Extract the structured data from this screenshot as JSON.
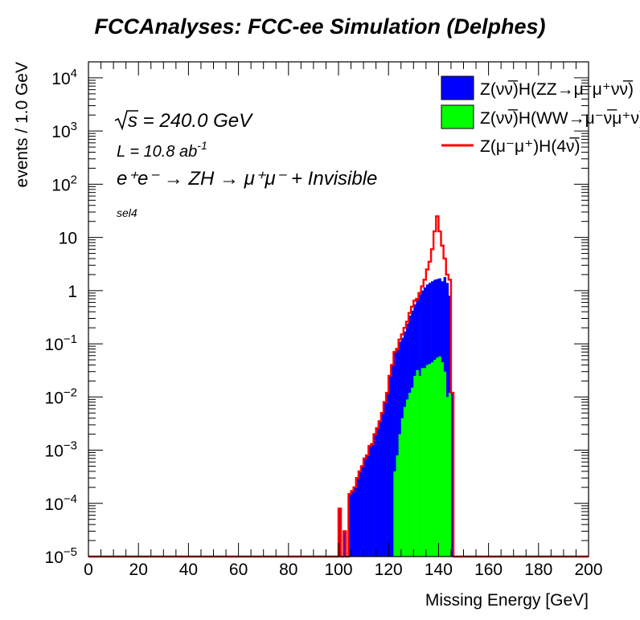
{
  "chart_data": {
    "type": "histogram",
    "title": "FCCAnalyses: FCC-ee Simulation (Delphes)",
    "xlabel": "Missing Energy [GeV]",
    "ylabel": "events / 1.0 GeV",
    "xlim": [
      0,
      200
    ],
    "ylim": [
      1e-05,
      20000
    ],
    "log_y": true,
    "x_ticks": [
      "0",
      "20",
      "40",
      "60",
      "80",
      "100",
      "120",
      "140",
      "160",
      "180",
      "200"
    ],
    "y_ticks": [
      {
        "base": "10",
        "exp": "4"
      },
      {
        "base": "10",
        "exp": "3"
      },
      {
        "base": "10",
        "exp": "2"
      },
      {
        "base": "10",
        "exp": ""
      },
      {
        "base": "1",
        "exp": ""
      },
      {
        "base": "10",
        "exp": "−1"
      },
      {
        "base": "10",
        "exp": "−2"
      },
      {
        "base": "10",
        "exp": "−3"
      },
      {
        "base": "10",
        "exp": "−4"
      },
      {
        "base": "10",
        "exp": "−5"
      }
    ],
    "annotations": {
      "sqrt_s": "s = 240.0 GeV",
      "lumi_main": "L = 10.8 ab",
      "lumi_exp": "-1",
      "process": "e⁺e⁻ → ZH → μ⁺μ⁻ + Invisible",
      "selection": "sel4"
    },
    "legend_position": "top-right",
    "bin_edges": [
      100,
      101,
      102,
      103,
      104,
      105,
      106,
      107,
      108,
      109,
      110,
      111,
      112,
      113,
      114,
      115,
      116,
      117,
      118,
      119,
      120,
      121,
      122,
      123,
      124,
      125,
      126,
      127,
      128,
      129,
      130,
      131,
      132,
      133,
      134,
      135,
      136,
      137,
      138,
      139,
      140,
      141,
      142,
      143,
      144,
      145,
      146,
      147
    ],
    "series": [
      {
        "name": "Z(νν̅)H(ZZ→μ⁻μ⁺νν̅)",
        "type": "stacked",
        "color": "#0000ff",
        "values": [
          8e-05,
          0,
          3e-05,
          0,
          0.00015,
          0.00017,
          0.0002,
          0.0003,
          0.0004,
          0.0005,
          0.0007,
          0.0008,
          0.0012,
          0.0013,
          0.002,
          0.0026,
          0.0035,
          0.005,
          0.008,
          0.012,
          0.025,
          0.04,
          0.07,
          0.08,
          0.11,
          0.13,
          0.17,
          0.24,
          0.34,
          0.42,
          0.55,
          0.7,
          0.85,
          1.0,
          1.15,
          1.3,
          1.4,
          1.5,
          1.6,
          1.65,
          1.7,
          1.5,
          1.8,
          1.4,
          0.8,
          0.012,
          0
        ]
      },
      {
        "name": "Z(νν̅)H(WW→μ⁻ν̅μ⁺ν)",
        "type": "stacked",
        "color": "#00ff00",
        "values": [
          0,
          0,
          0,
          0,
          0,
          0,
          0,
          0,
          0,
          0,
          0,
          0,
          0,
          0,
          0,
          0,
          0,
          0,
          0,
          0,
          0,
          0,
          0.0004,
          0.0008,
          0.002,
          0.004,
          0.0065,
          0.009,
          0.012,
          0.015,
          0.025,
          0.032,
          0.025,
          0.035,
          0.035,
          0.04,
          0.042,
          0.045,
          0.05,
          0.055,
          0.058,
          0.045,
          0.03,
          0.01,
          0.012,
          0,
          0
        ]
      },
      {
        "name": "Z(μ⁻μ⁺)H(4ν̅)",
        "type": "line",
        "color": "#ff0000",
        "values": [
          8e-05,
          0,
          3e-05,
          0,
          0.00015,
          0.00017,
          0.0002,
          0.0003,
          0.0004,
          0.0005,
          0.0007,
          0.0008,
          0.0012,
          0.0013,
          0.002,
          0.0026,
          0.0035,
          0.005,
          0.008,
          0.012,
          0.025,
          0.04,
          0.07,
          0.08,
          0.12,
          0.15,
          0.2,
          0.26,
          0.38,
          0.5,
          0.65,
          0.7,
          0.9,
          1.2,
          1.6,
          2.5,
          3.5,
          6.0,
          13.0,
          25.0,
          13.0,
          7.0,
          4.0,
          2.0,
          1.6,
          0.012,
          0
        ]
      }
    ]
  }
}
